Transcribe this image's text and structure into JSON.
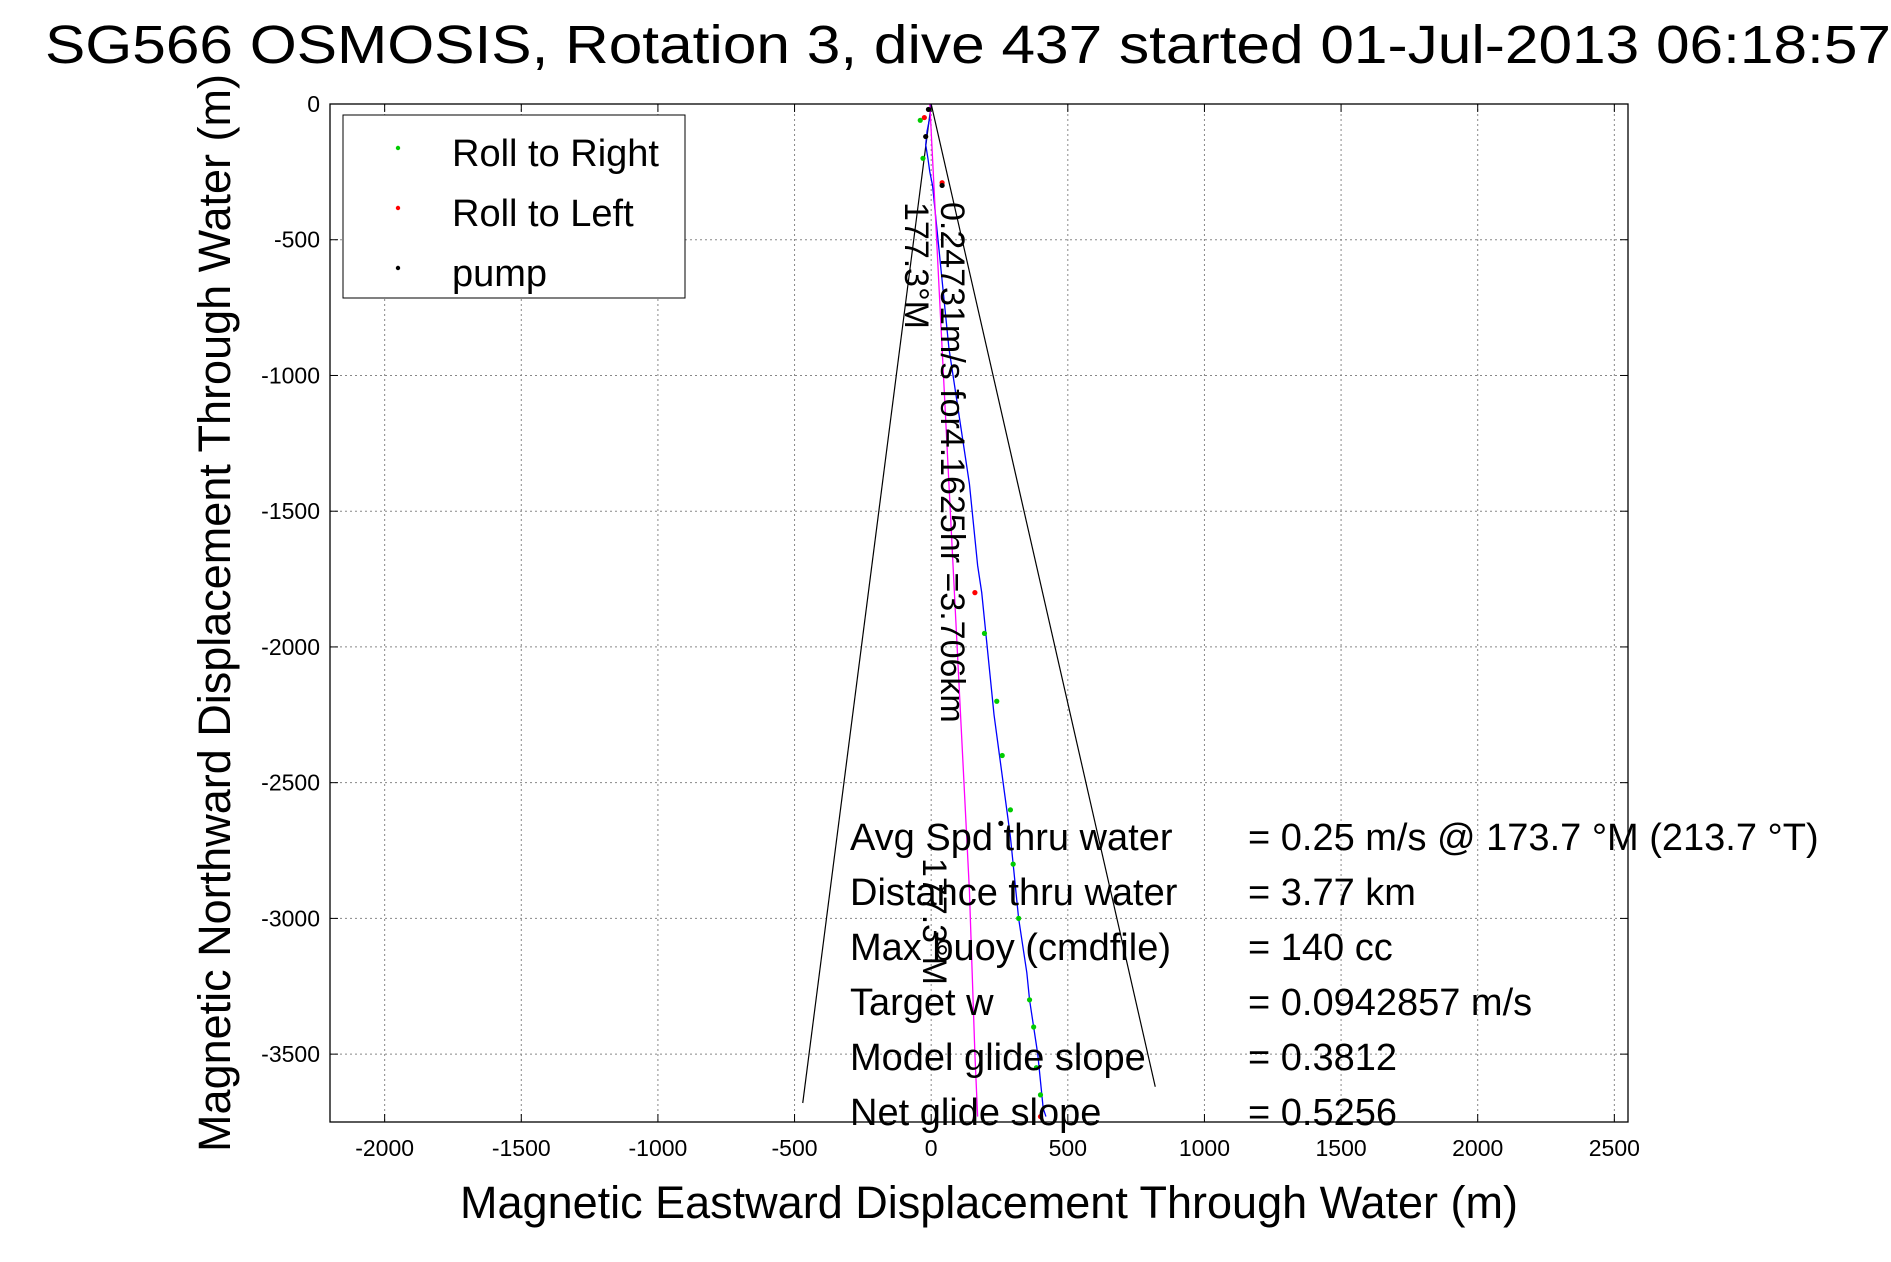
{
  "chart_data": {
    "type": "scatter",
    "title": "SG566 OSMOSIS, Rotation 3, dive 437 started 01-Jul-2013 06:18:57",
    "xlabel": "Magnetic Eastward Displacement Through Water (m)",
    "ylabel": "Magnetic Northward Displacement Through Water (m)",
    "xlim": [
      -2200,
      2550
    ],
    "ylim": [
      -3750,
      0
    ],
    "xticks": [
      -2000,
      -1500,
      -1000,
      -500,
      0,
      500,
      1000,
      1500,
      2000,
      2500
    ],
    "yticks": [
      0,
      -500,
      -1000,
      -1500,
      -2000,
      -2500,
      -3000,
      -3500
    ],
    "xtick_labels": [
      "-2000",
      "-1500",
      "-1000",
      "-500",
      "0",
      "500",
      "1000",
      "1500",
      "2000",
      "2500"
    ],
    "ytick_labels": [
      "0",
      "-500",
      "-1000",
      "-1500",
      "-2000",
      "-2500",
      "-3000",
      "-3500"
    ],
    "grid": true,
    "legend_position": "top-left",
    "legend": [
      {
        "label": "Roll to Right",
        "color": "#00cc00"
      },
      {
        "label": "Roll to Left",
        "color": "#ff0000"
      },
      {
        "label": "pump",
        "color": "#000000"
      }
    ],
    "series": [
      {
        "kind": "line",
        "color": "#0000ff",
        "x": [
          0,
          -5,
          -15,
          -20,
          -12,
          -5,
          5,
          15,
          25,
          35,
          45,
          55,
          65,
          80,
          95,
          110,
          125,
          140,
          150,
          160,
          170,
          185,
          200,
          215,
          230,
          250,
          270,
          290,
          300,
          310,
          320,
          335,
          350,
          360,
          375,
          390,
          400,
          410,
          420
        ],
        "y": [
          0,
          -50,
          -100,
          -150,
          -200,
          -250,
          -300,
          -400,
          -500,
          -600,
          -700,
          -800,
          -900,
          -1000,
          -1100,
          -1200,
          -1300,
          -1400,
          -1500,
          -1600,
          -1700,
          -1800,
          -1950,
          -2100,
          -2250,
          -2400,
          -2550,
          -2700,
          -2800,
          -2900,
          -3000,
          -3100,
          -3200,
          -3300,
          -3400,
          -3500,
          -3600,
          -3700,
          -3730
        ]
      },
      {
        "kind": "line",
        "color": "#ff00ff",
        "x": [
          -5,
          5,
          15,
          25,
          35,
          50,
          65,
          80,
          95,
          110,
          125,
          140,
          150,
          160,
          170
        ],
        "y": [
          0,
          -200,
          -400,
          -600,
          -800,
          -1100,
          -1400,
          -1700,
          -2000,
          -2300,
          -2600,
          -2900,
          -3200,
          -3500,
          -3730
        ]
      },
      {
        "kind": "scatter",
        "name": "Roll to Right",
        "color": "#00cc00",
        "x": [
          -40,
          -30,
          195,
          240,
          260,
          290,
          300,
          320,
          360,
          375,
          385,
          400
        ],
        "y": [
          -60,
          -200,
          -1950,
          -2200,
          -2400,
          -2600,
          -2800,
          -3000,
          -3300,
          -3400,
          -3550,
          -3650
        ]
      },
      {
        "kind": "scatter",
        "name": "Roll to Left",
        "color": "#ff0000",
        "x": [
          -25,
          40,
          160,
          400
        ],
        "y": [
          -50,
          -290,
          -1800,
          -3730
        ]
      },
      {
        "kind": "scatter",
        "name": "pump",
        "color": "#000000",
        "x": [
          -10,
          -20,
          40,
          255
        ],
        "y": [
          -20,
          -120,
          -300,
          -2650
        ]
      }
    ],
    "fan_lines": [
      {
        "from": [
          0,
          0
        ],
        "to": [
          -470,
          -3680
        ]
      },
      {
        "from": [
          0,
          0
        ],
        "to": [
          820,
          -3620
        ]
      }
    ],
    "annotations": {
      "heading_left": "177.3°M",
      "speed_text": "0.24731m/s for4.1625hr =3.706km",
      "heading_right": "177.3°M"
    },
    "stats": [
      {
        "label": "Avg Spd thru water",
        "value": "=  0.25 m/s @ 173.7 °M (213.7 °T)"
      },
      {
        "label": "Distance thru water",
        "value": "=  3.77 km"
      },
      {
        "label": "Max buoy (cmdfile)",
        "value": "= 140 cc"
      },
      {
        "label": "Target w",
        "value": "= 0.0942857 m/s"
      },
      {
        "label": "Model glide slope",
        "value": "= 0.3812"
      },
      {
        "label": "Net glide slope",
        "value": "= 0.5256"
      }
    ]
  }
}
